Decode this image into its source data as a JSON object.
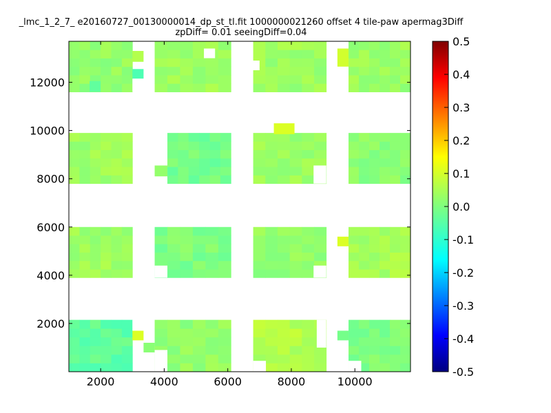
{
  "chart_data": {
    "type": "heatmap",
    "title": "_lmc_1_2_7_ e20160727_00130000014_dp_st_tl.fit 1000000021260 offset 4 tile-paw apermag3Diff",
    "subtitle": "zpDiff= 0.01 seeingDiff=0.04",
    "xlabel": "",
    "ylabel": "",
    "xlim": [
      1000,
      11750
    ],
    "ylim": [
      0,
      13700
    ],
    "x_ticks": [
      2000,
      4000,
      6000,
      8000,
      10000
    ],
    "y_ticks": [
      2000,
      4000,
      6000,
      8000,
      10000,
      12000
    ],
    "colorbar": {
      "colormap": "jet",
      "range": [
        -0.5,
        0.5
      ],
      "ticks": [
        "0.5",
        "0.4",
        "0.3",
        "0.2",
        "0.1",
        "0.0",
        "-0.1",
        "-0.2",
        "-0.3",
        "-0.4",
        "-0.5"
      ]
    },
    "detector_blocks": [
      {
        "x": [
          1000,
          3000
        ],
        "y": [
          11600,
          13700
        ],
        "value": 0.02
      },
      {
        "x": [
          3700,
          6100
        ],
        "y": [
          11600,
          13700
        ],
        "value": 0.03
      },
      {
        "x": [
          6800,
          9100
        ],
        "y": [
          11600,
          13700
        ],
        "value": 0.03
      },
      {
        "x": [
          9800,
          11750
        ],
        "y": [
          11600,
          13700
        ],
        "value": 0.03
      },
      {
        "x": [
          1000,
          3000
        ],
        "y": [
          7800,
          9900
        ],
        "value": 0.03
      },
      {
        "x": [
          4100,
          6100
        ],
        "y": [
          7800,
          9900
        ],
        "value": -0.01
      },
      {
        "x": [
          6800,
          9100
        ],
        "y": [
          7800,
          9900
        ],
        "value": 0.03
      },
      {
        "x": [
          9800,
          11750
        ],
        "y": [
          7800,
          9900
        ],
        "value": 0.01
      },
      {
        "x": [
          1000,
          3000
        ],
        "y": [
          3900,
          6000
        ],
        "value": 0.03
      },
      {
        "x": [
          3700,
          6100
        ],
        "y": [
          3900,
          6000
        ],
        "value": 0.0
      },
      {
        "x": [
          6800,
          9100
        ],
        "y": [
          3900,
          6000
        ],
        "value": 0.02
      },
      {
        "x": [
          9800,
          11750
        ],
        "y": [
          3900,
          6000
        ],
        "value": 0.04
      },
      {
        "x": [
          1000,
          3000
        ],
        "y": [
          0,
          2150
        ],
        "value": -0.03
      },
      {
        "x": [
          3700,
          6100
        ],
        "y": [
          0,
          2150
        ],
        "value": 0.02
      },
      {
        "x": [
          6800,
          9100
        ],
        "y": [
          0,
          2150
        ],
        "value": 0.05
      },
      {
        "x": [
          9800,
          11750
        ],
        "y": [
          0,
          2150
        ],
        "value": 0.0
      }
    ],
    "outlier_cells": [
      {
        "x": [
          3000,
          3350
        ],
        "y": [
          12150,
          12550
        ],
        "value": -0.05
      },
      {
        "x": [
          3000,
          3350
        ],
        "y": [
          12850,
          13300
        ],
        "value": 0.05
      },
      {
        "x": [
          3000,
          3350
        ],
        "y": [
          1300,
          1700
        ],
        "value": 0.09
      },
      {
        "x": [
          3350,
          3700
        ],
        "y": [
          800,
          1200
        ],
        "value": 0.01
      },
      {
        "x": [
          7450,
          8100
        ],
        "y": [
          9850,
          10300
        ],
        "value": 0.09
      },
      {
        "x": [
          9450,
          9800
        ],
        "y": [
          5200,
          5600
        ],
        "value": 0.09
      },
      {
        "x": [
          9450,
          9800
        ],
        "y": [
          12650,
          13400
        ],
        "value": 0.08
      },
      {
        "x": [
          9450,
          9800
        ],
        "y": [
          1300,
          1700
        ],
        "value": -0.01
      },
      {
        "x": [
          1650,
          2000
        ],
        "y": [
          11600,
          12050
        ],
        "value": -0.03
      },
      {
        "x": [
          3700,
          4100
        ],
        "y": [
          8100,
          8550
        ],
        "value": 0.02
      }
    ],
    "blank_cells": [
      {
        "x": [
          5250,
          5600
        ],
        "y": [
          13000,
          13400
        ]
      },
      {
        "x": [
          6600,
          7000
        ],
        "y": [
          12500,
          12900
        ]
      },
      {
        "x": [
          3000,
          3350
        ],
        "y": [
          11600,
          12150
        ]
      },
      {
        "x": [
          3000,
          3350
        ],
        "y": [
          1700,
          2150
        ]
      },
      {
        "x": [
          8700,
          9100
        ],
        "y": [
          7800,
          8550
        ]
      },
      {
        "x": [
          8700,
          9100
        ],
        "y": [
          3900,
          4400
        ]
      },
      {
        "x": [
          8800,
          9100
        ],
        "y": [
          1000,
          2150
        ]
      },
      {
        "x": [
          6800,
          7200
        ],
        "y": [
          0,
          450
        ]
      },
      {
        "x": [
          3700,
          4100
        ],
        "y": [
          0,
          900
        ]
      },
      {
        "x": [
          3700,
          4100
        ],
        "y": [
          3900,
          4400
        ]
      },
      {
        "x": [
          9800,
          10200
        ],
        "y": [
          0,
          450
        ]
      }
    ]
  }
}
